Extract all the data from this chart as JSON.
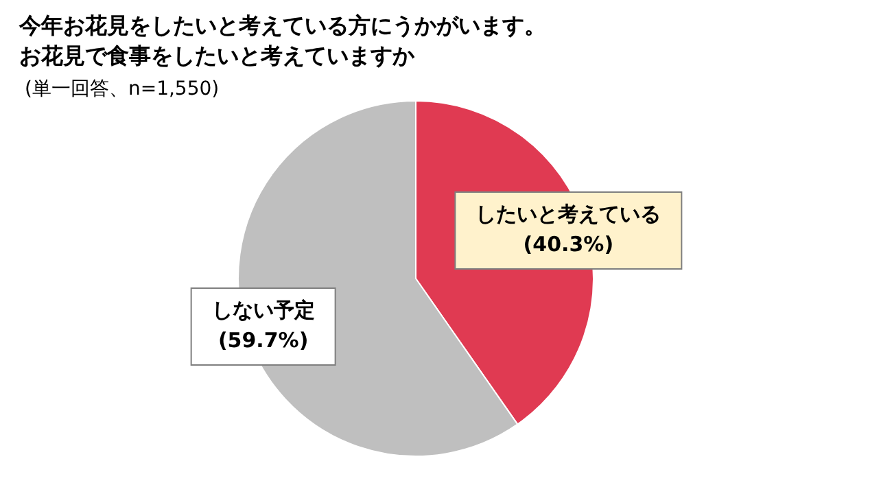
{
  "chart_data": {
    "type": "pie",
    "title": "今年お花見をしたいと考えている方にうかがいます。",
    "subtitle": "お花見で食事をしたいと考えていますか",
    "annotations": [
      "(単一回答、n=1,550)"
    ],
    "categories": [
      "したいと考えている",
      "しない予定"
    ],
    "values": [
      40.3,
      59.7
    ],
    "value_labels": [
      "(40.3%)",
      "(59.7%)"
    ],
    "colors": [
      "#e03a52",
      "#bfbfbf"
    ],
    "legend": false
  }
}
